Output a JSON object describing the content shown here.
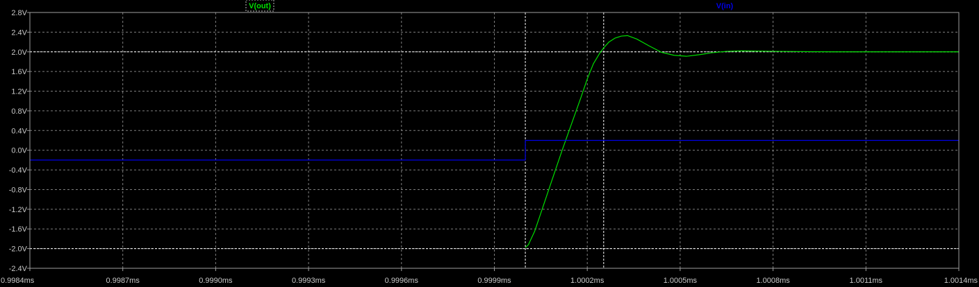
{
  "chart_data": {
    "type": "line",
    "x_unit": "ms",
    "y_unit": "V",
    "xlim": [
      0.9984,
      1.0014
    ],
    "ylim": [
      -2.4,
      2.8
    ],
    "x_ticks": [
      "0.9984ms",
      "0.9987ms",
      "0.9990ms",
      "0.9993ms",
      "0.9996ms",
      "0.9999ms",
      "1.0002ms",
      "1.0005ms",
      "1.0008ms",
      "1.0011ms",
      "1.0014ms"
    ],
    "y_ticks": [
      "2.8V",
      "2.4V",
      "2.0V",
      "1.6V",
      "1.2V",
      "0.8V",
      "0.4V",
      "0.0V",
      "-0.4V",
      "-0.8V",
      "-1.2V",
      "-1.6V",
      "-2.0V",
      "-2.4V"
    ],
    "grid": true,
    "colors": {
      "background": "#000000",
      "grid": "#808080",
      "axis": "#a0a0a0",
      "cursor": "#ffffff"
    },
    "cursors": {
      "vertical_x": [
        1.0,
        1.000253
      ],
      "horizontal_y": [
        2.0,
        -2.0
      ]
    },
    "series": [
      {
        "name": "V(out)",
        "color": "#00e000",
        "x": [
          1.0,
          1.00001,
          1.00003,
          1.00005,
          1.00008,
          1.0001,
          1.00012,
          1.00015,
          1.00018,
          1.0002,
          1.00022,
          1.00024,
          1.000253,
          1.00027,
          1.00029,
          1.00031,
          1.00033,
          1.00036,
          1.0004,
          1.00044,
          1.00048,
          1.00052,
          1.00056,
          1.0006,
          1.00065,
          1.0007,
          1.0008,
          1.001,
          1.0014
        ],
        "y": [
          -1.98,
          -1.92,
          -1.65,
          -1.28,
          -0.72,
          -0.35,
          0.02,
          0.55,
          1.08,
          1.45,
          1.76,
          1.97,
          2.08,
          2.2,
          2.28,
          2.32,
          2.33,
          2.26,
          2.12,
          1.99,
          1.93,
          1.91,
          1.94,
          1.98,
          2.01,
          2.02,
          2.01,
          2.0,
          2.0
        ]
      },
      {
        "name": "V(in)",
        "color": "#0000e8",
        "x": [
          0.9984,
          1.0,
          1.0,
          1.0014
        ],
        "y": [
          -0.2,
          -0.2,
          0.2,
          0.2
        ]
      }
    ]
  }
}
